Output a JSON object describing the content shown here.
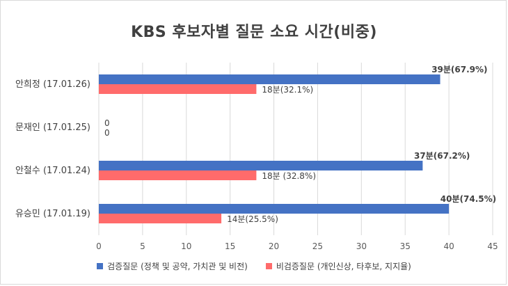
{
  "chart_data": {
    "type": "bar",
    "orientation": "horizontal",
    "title": "KBS 후보자별 질문 소요 시간(비중)",
    "categories": [
      "안희정 (17.01.26)",
      "문재인 (17.01.25)",
      "안철수 (17.01.24)",
      "유승민 (17.01.19)"
    ],
    "series": [
      {
        "name": "검증질문 (정책 및 공약, 가치관 및 비전)",
        "color": "#4472c4",
        "values": [
          39,
          0,
          37,
          40
        ],
        "labels": [
          "39분(67.9%)",
          "0",
          "37분(67.2%)",
          "40분(74.5%)"
        ]
      },
      {
        "name": "비검증질문 (개인신상, 타후보, 지지율)",
        "color": "#ff6b6b",
        "values": [
          18,
          0,
          18,
          14
        ],
        "labels": [
          "18분(32.1%)",
          "0",
          "18분 (32.8%)",
          "14분(25.5%)"
        ]
      }
    ],
    "xlim": [
      0,
      45
    ],
    "xticks": [
      0,
      5,
      10,
      15,
      20,
      25,
      30,
      35,
      40,
      45
    ],
    "grid": true,
    "legend_position": "bottom"
  }
}
